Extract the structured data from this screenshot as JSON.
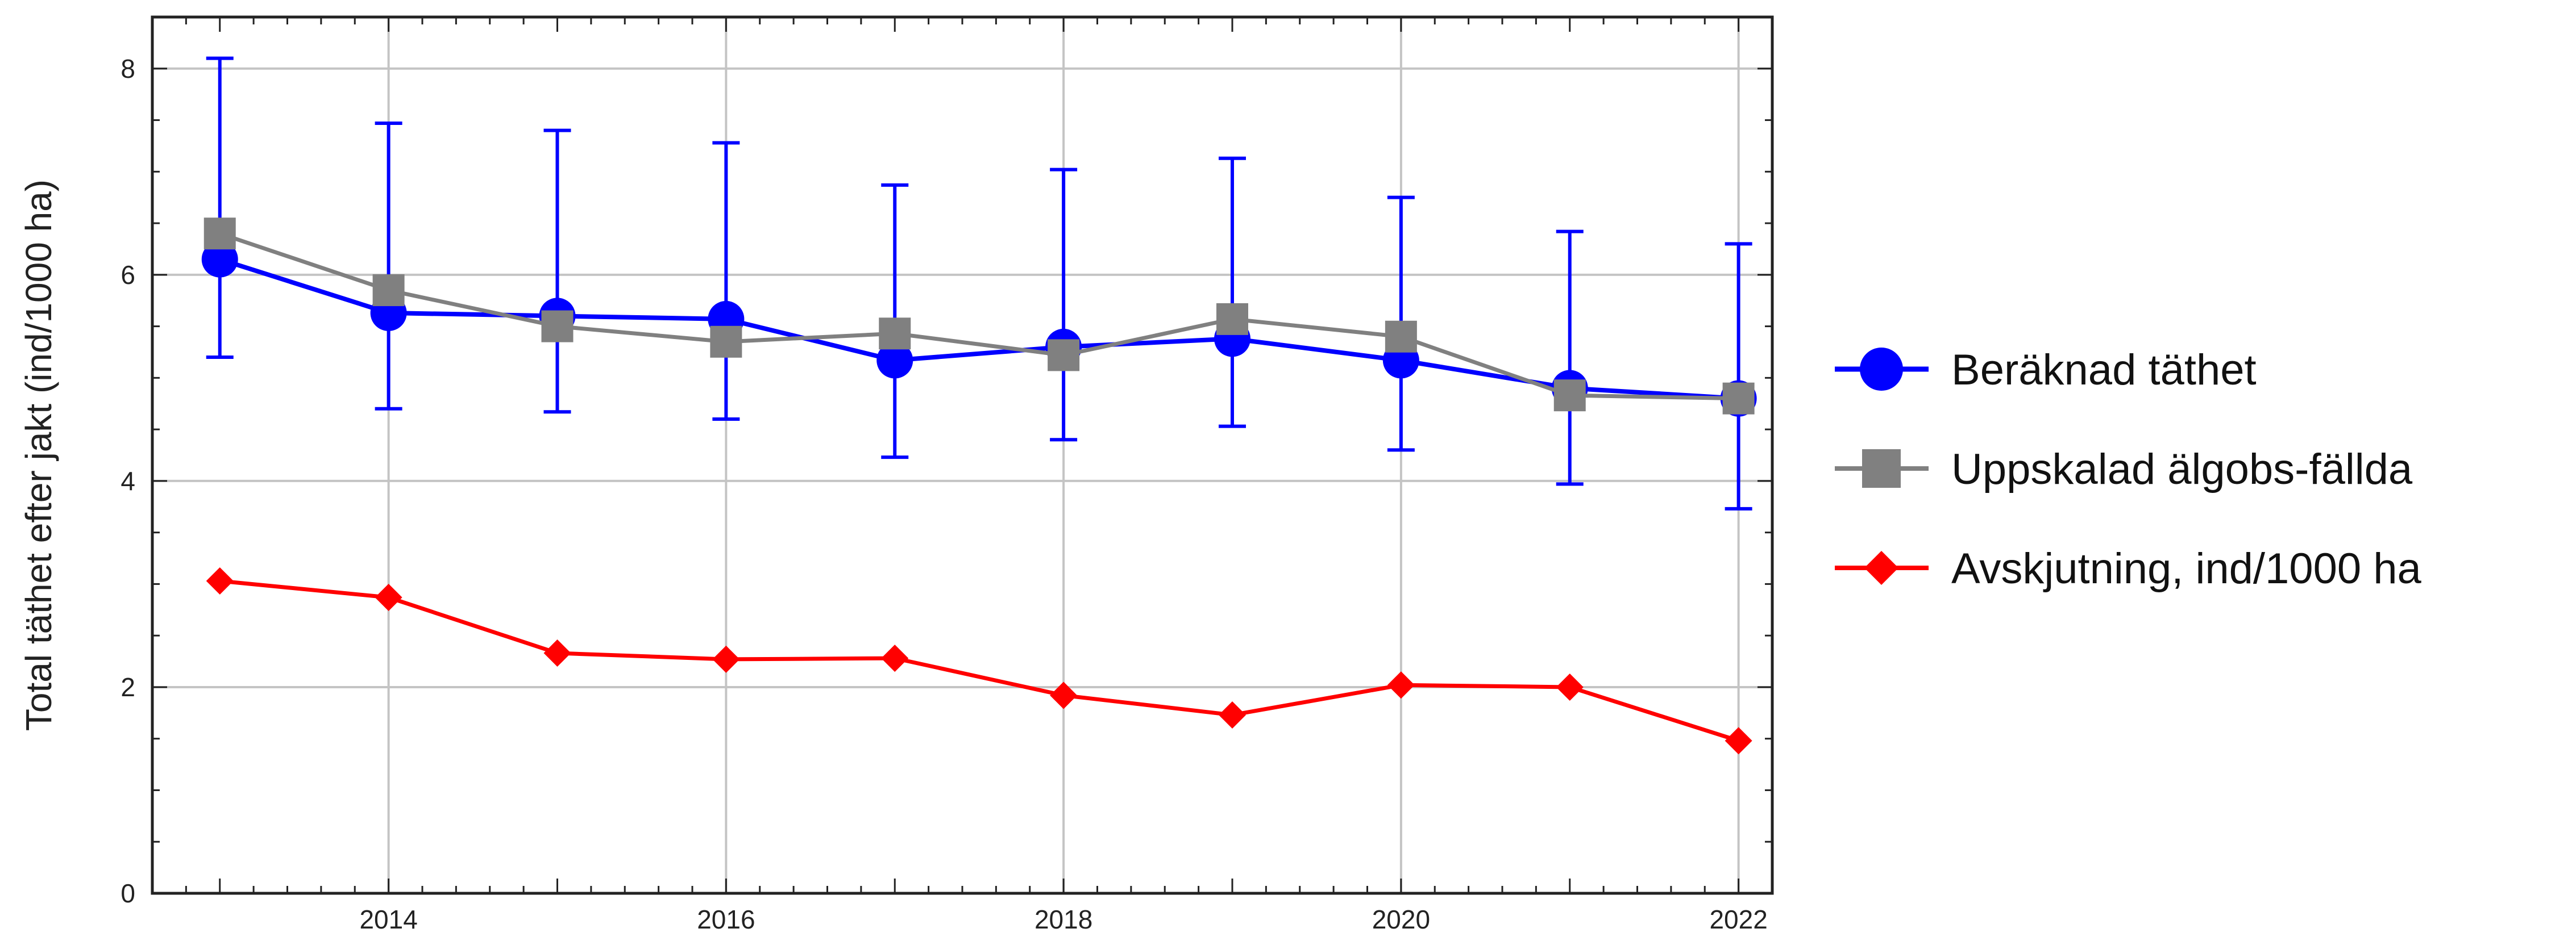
{
  "chart_data": {
    "type": "line",
    "title": "",
    "xlabel": "",
    "ylabel": "Total täthet efter jakt (ind/1000 ha)",
    "xlim": [
      2012.6,
      2022.2
    ],
    "ylim": [
      0,
      8.5
    ],
    "grid": true,
    "legend_position": "right",
    "x_ticks": [
      2014,
      2016,
      2018,
      2020,
      2022
    ],
    "y_ticks": [
      0,
      2,
      4,
      6,
      8
    ],
    "x": [
      2013,
      2014,
      2015,
      2016,
      2017,
      2018,
      2019,
      2020,
      2021,
      2022
    ],
    "series": [
      {
        "name": "Beräknad täthet",
        "color": "#0000ff",
        "marker": "circle",
        "values": [
          6.15,
          5.63,
          5.6,
          5.57,
          5.17,
          5.3,
          5.38,
          5.17,
          4.9,
          4.8
        ],
        "error_low": [
          5.2,
          4.7,
          4.67,
          4.6,
          4.23,
          4.4,
          4.53,
          4.3,
          3.97,
          3.73
        ],
        "error_high": [
          8.1,
          7.47,
          7.4,
          7.28,
          6.87,
          7.02,
          7.13,
          6.75,
          6.42,
          6.3
        ]
      },
      {
        "name": "Uppskalad älgobs-fällda",
        "color": "#808080",
        "marker": "square",
        "values": [
          6.4,
          5.85,
          5.5,
          5.35,
          5.43,
          5.22,
          5.57,
          5.4,
          4.83,
          4.8
        ]
      },
      {
        "name": "Avskjutning, ind/1000 ha",
        "color": "#ff0000",
        "marker": "diamond",
        "values": [
          3.03,
          2.87,
          2.33,
          2.27,
          2.28,
          1.92,
          1.73,
          2.02,
          2.0,
          1.48
        ]
      }
    ]
  }
}
